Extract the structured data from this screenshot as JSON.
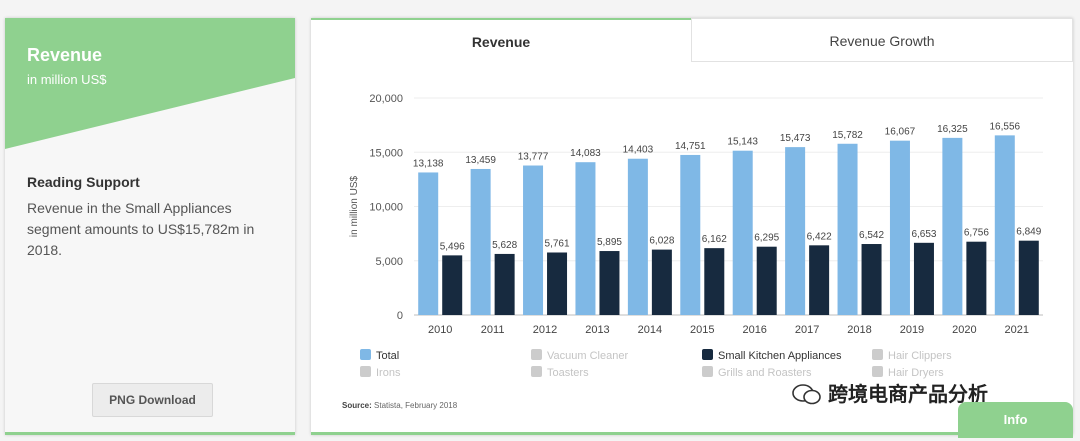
{
  "left_card": {
    "title": "Revenue",
    "subtitle": "in million US$",
    "support_title": "Reading Support",
    "support_text": "Revenue in the Small Appliances segment amounts to US$15,782m in 2018.",
    "png_button": "PNG Download"
  },
  "tabs": [
    "Revenue",
    "Revenue Growth"
  ],
  "source": {
    "label": "Source:",
    "text": "Statista, February 2018"
  },
  "info_button": "Info",
  "watermark": "跨境电商产品分析",
  "colors": {
    "accent": "#8fd18f",
    "total": "#7fb8e6",
    "small_kitchen": "#172a3f",
    "disabled": "#cccccc"
  },
  "legend": [
    {
      "name": "Total",
      "active": true,
      "color": "#7fb8e6"
    },
    {
      "name": "Vacuum Cleaner",
      "active": false,
      "color": "#cccccc"
    },
    {
      "name": "Small Kitchen Appliances",
      "active": true,
      "color": "#172a3f"
    },
    {
      "name": "Hair Clippers",
      "active": false,
      "color": "#cccccc"
    },
    {
      "name": "Irons",
      "active": false,
      "color": "#cccccc"
    },
    {
      "name": "Toasters",
      "active": false,
      "color": "#cccccc"
    },
    {
      "name": "Grills and Roasters",
      "active": false,
      "color": "#cccccc"
    },
    {
      "name": "Hair Dryers",
      "active": false,
      "color": "#cccccc"
    }
  ],
  "chart_data": {
    "type": "bar",
    "categories": [
      "2010",
      "2011",
      "2012",
      "2013",
      "2014",
      "2015",
      "2016",
      "2017",
      "2018",
      "2019",
      "2020",
      "2021"
    ],
    "series": [
      {
        "name": "Total",
        "values": [
          13138,
          13459,
          13777,
          14083,
          14403,
          14751,
          15143,
          15473,
          15782,
          16067,
          16325,
          16556
        ]
      },
      {
        "name": "Small Kitchen Appliances",
        "values": [
          5496,
          5628,
          5761,
          5895,
          6028,
          6162,
          6295,
          6422,
          6542,
          6653,
          6756,
          6849
        ]
      }
    ],
    "ylabel": "in million US$",
    "ylim": [
      0,
      20000
    ],
    "yticks": [
      0,
      5000,
      10000,
      15000,
      20000
    ],
    "ytick_labels": [
      "0",
      "5,000",
      "10,000",
      "15,000",
      "20,000"
    ],
    "grid": true
  }
}
